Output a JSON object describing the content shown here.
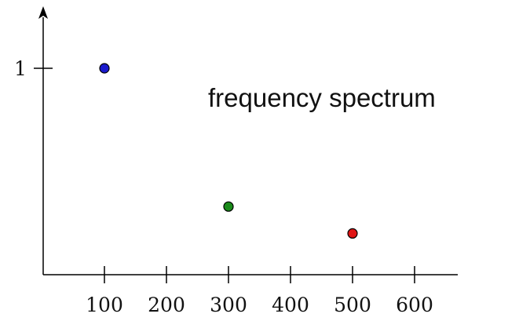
{
  "chart_data": {
    "type": "scatter",
    "title": "",
    "xlabel": "",
    "ylabel": "",
    "xlim": [
      0,
      650
    ],
    "ylim": [
      0,
      1.18
    ],
    "x_ticks": [
      "100",
      "200",
      "300",
      "400",
      "500",
      "600"
    ],
    "y_ticks": [
      "1"
    ],
    "points": [
      {
        "x": 100,
        "y": 1.0,
        "color": "#1a1acc"
      },
      {
        "x": 300,
        "y": 0.33,
        "color": "#1a8a1a"
      },
      {
        "x": 500,
        "y": 0.2,
        "color": "#e01515"
      }
    ],
    "annotations": [
      {
        "text": "frequency spectrum"
      }
    ],
    "grid": false,
    "legend": "none"
  }
}
